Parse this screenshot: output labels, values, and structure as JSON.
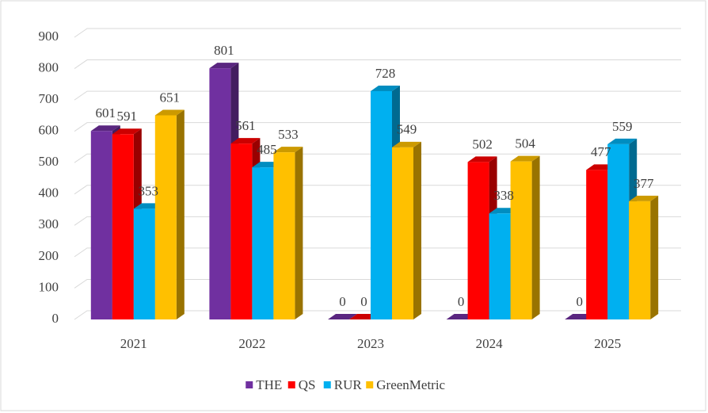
{
  "chart_data": {
    "type": "bar3d",
    "categories": [
      "2021",
      "2022",
      "2023",
      "2024",
      "2025"
    ],
    "series": [
      {
        "name": "THE",
        "color": "#7030a0",
        "values": [
          601,
          801,
          0,
          0,
          0
        ]
      },
      {
        "name": "QS",
        "color": "#ff0000",
        "values": [
          591,
          561,
          0,
          502,
          477
        ]
      },
      {
        "name": "RUR",
        "color": "#00b0f0",
        "values": [
          353,
          485,
          728,
          338,
          559
        ]
      },
      {
        "name": "GreenMetric",
        "color": "#ffc000",
        "values": [
          651,
          533,
          549,
          504,
          377
        ]
      }
    ],
    "ylim": [
      0,
      900
    ],
    "yticks": [
      0,
      100,
      200,
      300,
      400,
      500,
      600,
      700,
      800,
      900
    ],
    "grid": true,
    "legend": "bottom"
  }
}
